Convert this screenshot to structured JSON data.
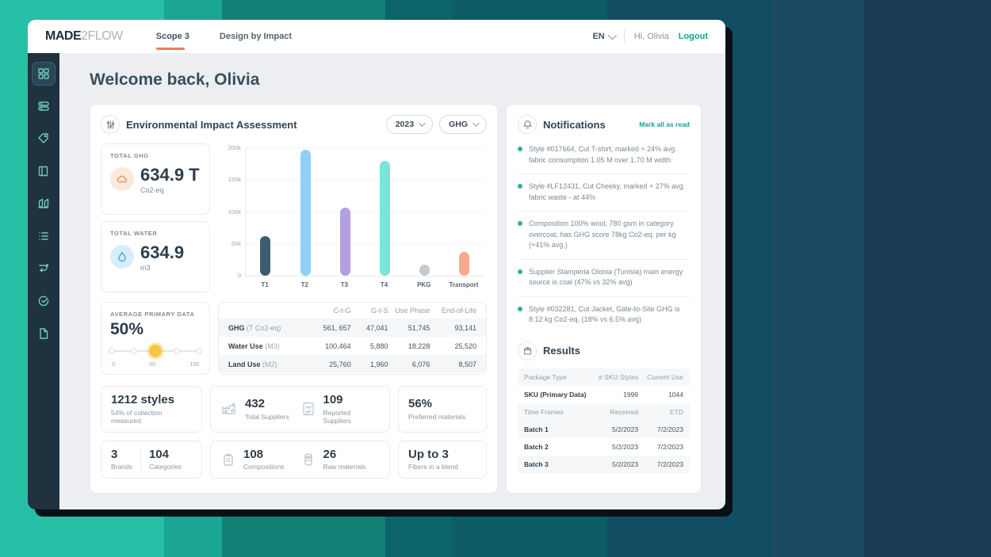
{
  "colors": {
    "accent_teal": "#14a393",
    "tab_underline": "#f2795c",
    "slider_active": "#f9c644",
    "notification_bullet": "#27b2a4"
  },
  "header": {
    "logo_bold": "MADE",
    "logo_light": "2FLOW",
    "tabs": [
      {
        "label": "Scope 3"
      },
      {
        "label": "Design by Impact"
      }
    ],
    "lang": "EN",
    "greeting": "Hi, Olivia",
    "logout": "Logout"
  },
  "sidebar": {
    "items": [
      "dashboard",
      "data-rows",
      "tag",
      "book",
      "reports",
      "list",
      "flow",
      "check-circle",
      "document"
    ]
  },
  "page_title": "Welcome back, Olivia",
  "eia": {
    "title": "Environmental Impact Assessment",
    "year_filter": "2023",
    "metric_filter": "GHG",
    "total_ghg": {
      "label": "TOTAL GHG",
      "value": "634.9 T",
      "unit": "Co2-eq"
    },
    "total_water": {
      "label": "TOTAL WATER",
      "value": "634.9",
      "unit": "m3"
    },
    "avg_primary": {
      "label": "AVERAGE PRIMARY DATA",
      "value": "50%",
      "scale_min": "0",
      "scale_mid": "50",
      "scale_max": "100"
    },
    "impact_table": {
      "columns": [
        "C-t-G",
        "G-t-S",
        "Use Phase",
        "End-of-Life"
      ],
      "rows": [
        {
          "label": "GHG",
          "unit": "(T Co2-eq)",
          "values": [
            "561, 657",
            "47,041",
            "51,745",
            "93,141"
          ]
        },
        {
          "label": "Water Use",
          "unit": "(M3)",
          "values": [
            "100,464",
            "5,880",
            "18,228",
            "25,520"
          ]
        },
        {
          "label": "Land Use",
          "unit": "(M2)",
          "values": [
            "25,760",
            "1,960",
            "6,076",
            "8,507"
          ]
        }
      ]
    }
  },
  "chart_data": {
    "type": "bar",
    "categories": [
      "T1",
      "T2",
      "T3",
      "T4",
      "PKG",
      "Transport"
    ],
    "values": [
      62000,
      197000,
      107000,
      180000,
      17000,
      37000
    ],
    "colors": [
      "#3f5d6e",
      "#8fd0f9",
      "#b4a0e0",
      "#77e6d8",
      "#c5cacf",
      "#f9a88e"
    ],
    "title": "Environmental Impact Assessment",
    "xlabel": "",
    "ylabel": "",
    "ylim": [
      0,
      200000
    ],
    "ytick_values": [
      0,
      50000,
      100000,
      150000,
      200000
    ],
    "ytick_labels": [
      "0",
      "50k",
      "100k",
      "150k",
      "200k"
    ],
    "grid": true,
    "legend": false
  },
  "stats": {
    "styles": {
      "value": "1212 styles",
      "sub": "54% of collection measured"
    },
    "suppliers": {
      "value": "432",
      "label": "Total Suppliers"
    },
    "reported": {
      "value": "109",
      "label": "Reported Suppliers"
    },
    "preferred": {
      "value": "56%",
      "label": "Preferred materials"
    },
    "brands": {
      "value": "3",
      "label": "Brands"
    },
    "categories": {
      "value": "104",
      "label": "Categories"
    },
    "compositions": {
      "value": "108",
      "label": "Compositions"
    },
    "raw_materials": {
      "value": "26",
      "label": "Raw materials"
    },
    "fibers": {
      "value": "Up to 3",
      "label": "Fibers in a blend"
    }
  },
  "notifications": {
    "title": "Notifications",
    "mark_all": "Mark all as read",
    "items": [
      "Style #017664, Cut T-shirt, marked + 24% avg. fabric consumption 1.05 M over 1.70 M width",
      "Style #LF12431, Cut Cheeky, marked + 27% avg. fabric waste - at 44%",
      "Composition 100% wool, 780 gsm in category overcoat, has GHG score 78kg Co2-eq. per kg (+41% avg.)",
      "Supplier Stamperia Olonia (Tunisia) main energy source is coal (47% vs 32% avg)",
      "Style #032281, Cut Jacket, Gate-to-Site GHG is 8.12 kg Co2-eq. (18% vs 6.5% avg)"
    ]
  },
  "results": {
    "title": "Results",
    "package_header": [
      "Package Type",
      "# SKU Styles",
      "Current Use"
    ],
    "sku_row": [
      "SKU (Primary Data)",
      "1999",
      "1044"
    ],
    "time_header": [
      "Time Frames",
      "Received",
      "ETD"
    ],
    "batches": [
      [
        "Batch 1",
        "5/2/2023",
        "7/2/2023"
      ],
      [
        "Batch 2",
        "5/2/2023",
        "7/2/2023"
      ],
      [
        "Batch 3",
        "5/2/2023",
        "7/2/2023"
      ]
    ]
  }
}
